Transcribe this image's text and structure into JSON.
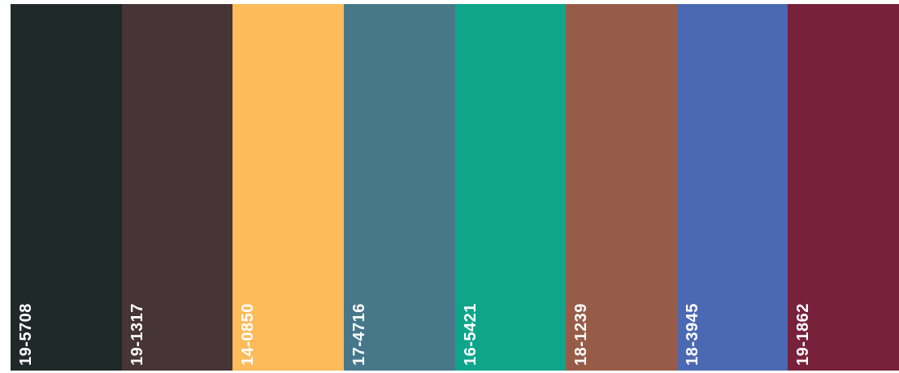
{
  "swatches": [
    {
      "code": "19-5708",
      "color": "#1f2928"
    },
    {
      "code": "19-1317",
      "color": "#463436"
    },
    {
      "code": "14-0850",
      "color": "#fdbb5a"
    },
    {
      "code": "17-4716",
      "color": "#46788a"
    },
    {
      "code": "16-5421",
      "color": "#0ea58b"
    },
    {
      "code": "18-1239",
      "color": "#975c48"
    },
    {
      "code": "18-3945",
      "color": "#4b69b2"
    },
    {
      "code": "19-1862",
      "color": "#78213a"
    }
  ]
}
